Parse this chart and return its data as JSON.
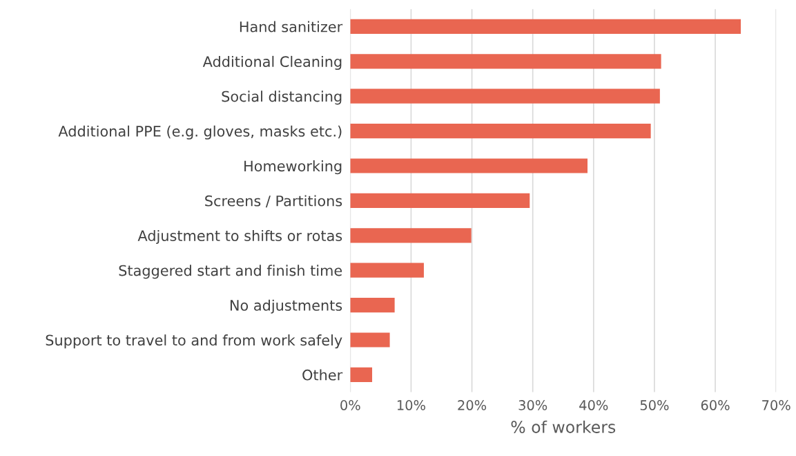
{
  "chart_data": {
    "type": "bar",
    "orientation": "horizontal",
    "xlabel": "% of workers",
    "categories": [
      "Hand sanitizer",
      "Additional Cleaning",
      "Social distancing",
      "Additional PPE (e.g. gloves, masks etc.)",
      "Homeworking",
      "Screens / Partitions",
      "Adjustment to shifts or rotas",
      "Staggered start and finish time",
      "No adjustments",
      "Support to travel to and from work safely",
      "Other"
    ],
    "values": [
      64.2,
      51.1,
      50.9,
      49.4,
      39.0,
      29.5,
      19.9,
      12.1,
      7.3,
      6.5,
      3.6
    ],
    "color": "#e96651",
    "xlim": [
      0,
      70
    ],
    "xticks": [
      {
        "value": 0,
        "label": "0%"
      },
      {
        "value": 10,
        "label": "10%"
      },
      {
        "value": 20,
        "label": "20%"
      },
      {
        "value": 30,
        "label": "30%"
      },
      {
        "value": 40,
        "label": "40%"
      },
      {
        "value": 50,
        "label": "50%"
      },
      {
        "value": 60,
        "label": "60%"
      },
      {
        "value": 70,
        "label": "70%"
      }
    ],
    "grid": "x",
    "legend": false
  }
}
